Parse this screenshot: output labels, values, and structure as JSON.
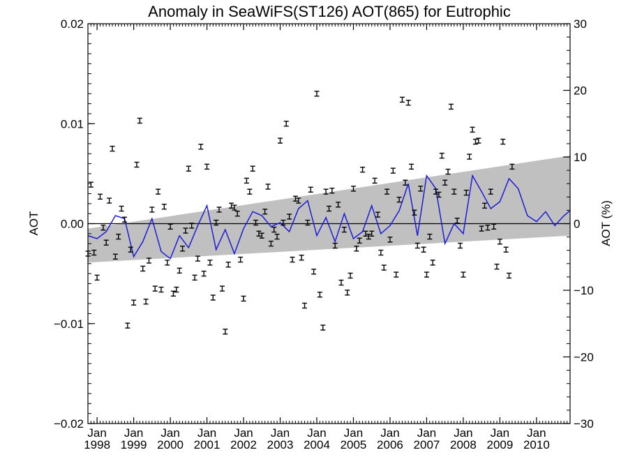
{
  "chart_data": {
    "type": "scatter",
    "title": "Anomaly in SeaWiFS(ST126) AOT(865) for Eutrophic",
    "ylabel": "AOT",
    "ylabel_right": "AOT (%)",
    "xlabel": "",
    "xlim": [
      "1997-10",
      "2010-12"
    ],
    "ylim": [
      -0.02,
      0.02
    ],
    "ylim_right": [
      -30,
      30
    ],
    "grid": false,
    "x_ticks": [
      {
        "month": "Jan",
        "year": "1998",
        "x": "1998-01"
      },
      {
        "month": "Jan",
        "year": "1999",
        "x": "1999-01"
      },
      {
        "month": "Jan",
        "year": "2000",
        "x": "2000-01"
      },
      {
        "month": "Jan",
        "year": "2001",
        "x": "2001-01"
      },
      {
        "month": "Jan",
        "year": "2002",
        "x": "2002-01"
      },
      {
        "month": "Jan",
        "year": "2003",
        "x": "2003-01"
      },
      {
        "month": "Jan",
        "year": "2004",
        "x": "2004-01"
      },
      {
        "month": "Jan",
        "year": "2005",
        "x": "2005-01"
      },
      {
        "month": "Jan",
        "year": "2006",
        "x": "2006-01"
      },
      {
        "month": "Jan",
        "year": "2007",
        "x": "2007-01"
      },
      {
        "month": "Jan",
        "year": "2008",
        "x": "2008-01"
      },
      {
        "month": "Jan",
        "year": "2009",
        "x": "2009-01"
      },
      {
        "month": "Jan",
        "year": "2010",
        "x": "2010-01"
      }
    ],
    "y_ticks_left": [
      {
        "label": "0.02",
        "value": 0.02
      },
      {
        "label": "0.01",
        "value": 0.01
      },
      {
        "label": "0.00",
        "value": 0.0
      },
      {
        "label": "−0.01",
        "value": -0.01
      },
      {
        "label": "−0.02",
        "value": -0.02
      }
    ],
    "y_ticks_right": [
      {
        "label": "30",
        "value": 30
      },
      {
        "label": "20",
        "value": 20
      },
      {
        "label": "10",
        "value": 10
      },
      {
        "label": "0",
        "value": 0
      },
      {
        "label": "−10",
        "value": -10
      },
      {
        "label": "−20",
        "value": -20
      },
      {
        "label": "−30",
        "value": -30
      }
    ],
    "colors": {
      "line": "#1c1cd6",
      "band": "#c0c0c0",
      "points": "#000000",
      "zero_line": "#000000"
    },
    "trend_band": {
      "start": {
        "x": "1997-10",
        "low": -0.0039,
        "high": -0.0005
      },
      "end": {
        "x": "2010-12",
        "low": -0.0012,
        "high": 0.0068
      }
    },
    "points": [
      [
        "1997-10",
        -0.003
      ],
      [
        "1997-11",
        0.0039
      ],
      [
        "1997-12",
        -0.0029
      ],
      [
        "1998-01",
        -0.0054
      ],
      [
        "1998-02",
        0.0027
      ],
      [
        "1998-03",
        -0.0004
      ],
      [
        "1998-04",
        -0.0019
      ],
      [
        "1998-05",
        0.0023
      ],
      [
        "1998-06",
        0.0075
      ],
      [
        "1998-07",
        -0.0033
      ],
      [
        "1998-08",
        -0.0013
      ],
      [
        "1998-09",
        0.0015
      ],
      [
        "1998-10",
        0.0004
      ],
      [
        "1998-11",
        -0.0102
      ],
      [
        "1998-12",
        -0.0026
      ],
      [
        "1999-01",
        -0.0079
      ],
      [
        "1999-02",
        0.0059
      ],
      [
        "1999-03",
        0.0103
      ],
      [
        "1999-04",
        -0.0045
      ],
      [
        "1999-05",
        -0.0078
      ],
      [
        "1999-06",
        -0.0037
      ],
      [
        "1999-07",
        0.0014
      ],
      [
        "1999-08",
        -0.0065
      ],
      [
        "1999-09",
        0.0032
      ],
      [
        "1999-10",
        -0.0066
      ],
      [
        "1999-11",
        0.0017
      ],
      [
        "1999-12",
        -0.0039
      ],
      [
        "2000-01",
        -0.0003
      ],
      [
        "2000-02",
        -0.007
      ],
      [
        "2000-03",
        -0.0066
      ],
      [
        "2000-04",
        -0.0047
      ],
      [
        "2000-05",
        -0.0025
      ],
      [
        "2000-06",
        -0.0007
      ],
      [
        "2000-07",
        0.0055
      ],
      [
        "2000-08",
        -0.0002
      ],
      [
        "2000-09",
        -0.0054
      ],
      [
        "2000-10",
        -0.0035
      ],
      [
        "2000-11",
        0.0077
      ],
      [
        "2000-12",
        -0.005
      ],
      [
        "2001-01",
        0.0057
      ],
      [
        "2001-02",
        -0.0039
      ],
      [
        "2001-03",
        -0.0074
      ],
      [
        "2001-04",
        0.0001
      ],
      [
        "2001-05",
        0.0014
      ],
      [
        "2001-06",
        -0.0065
      ],
      [
        "2001-07",
        -0.0108
      ],
      [
        "2001-08",
        -0.0041
      ],
      [
        "2001-09",
        0.0018
      ],
      [
        "2001-10",
        0.0016
      ],
      [
        "2001-11",
        0.001
      ],
      [
        "2001-12",
        -0.0036
      ],
      [
        "2002-01",
        -0.0075
      ],
      [
        "2002-02",
        0.0043
      ],
      [
        "2002-03",
        0.0032
      ],
      [
        "2002-04",
        0.0055
      ],
      [
        "2002-05",
        0.0001
      ],
      [
        "2002-06",
        -0.001
      ],
      [
        "2002-07",
        -0.0012
      ],
      [
        "2002-08",
        0.0012
      ],
      [
        "2002-09",
        0.0037
      ],
      [
        "2002-10",
        -0.002
      ],
      [
        "2002-11",
        -0.0006
      ],
      [
        "2002-12",
        -0.0013
      ],
      [
        "2003-01",
        0.0083
      ],
      [
        "2003-02",
        0.0001
      ],
      [
        "2003-03",
        0.01
      ],
      [
        "2003-04",
        0.0007
      ],
      [
        "2003-05",
        -0.0036
      ],
      [
        "2003-06",
        0.0025
      ],
      [
        "2003-07",
        0.0023
      ],
      [
        "2003-08",
        -0.0034
      ],
      [
        "2003-09",
        -0.0082
      ],
      [
        "2003-10",
        0.0001
      ],
      [
        "2003-11",
        0.0034
      ],
      [
        "2003-12",
        -0.0048
      ],
      [
        "2004-01",
        0.013
      ],
      [
        "2004-02",
        -0.0071
      ],
      [
        "2004-03",
        -0.0104
      ],
      [
        "2004-04",
        0.0032
      ],
      [
        "2004-05",
        0.0015
      ],
      [
        "2004-06",
        0.0033
      ],
      [
        "2004-07",
        -0.0022
      ],
      [
        "2004-08",
        0.0019
      ],
      [
        "2004-09",
        -0.0059
      ],
      [
        "2004-10",
        -0.0006
      ],
      [
        "2004-11",
        -0.0069
      ],
      [
        "2004-12",
        -0.0052
      ],
      [
        "2005-01",
        0.0035
      ],
      [
        "2005-02",
        -0.0025
      ],
      [
        "2005-03",
        -0.0017
      ],
      [
        "2005-04",
        0.0054
      ],
      [
        "2005-05",
        -0.001
      ],
      [
        "2005-06",
        -0.0013
      ],
      [
        "2005-07",
        -0.001
      ],
      [
        "2005-08",
        0.0043
      ],
      [
        "2005-09",
        0.0009
      ],
      [
        "2005-10",
        -0.0029
      ],
      [
        "2005-11",
        -0.0044
      ],
      [
        "2005-12",
        0.0032
      ],
      [
        "2006-01",
        -0.0016
      ],
      [
        "2006-02",
        0.0053
      ],
      [
        "2006-03",
        -0.0051
      ],
      [
        "2006-04",
        0.0024
      ],
      [
        "2006-05",
        0.0124
      ],
      [
        "2006-06",
        0.0041
      ],
      [
        "2006-07",
        0.0121
      ],
      [
        "2006-08",
        0.0057
      ],
      [
        "2006-09",
        0.0011
      ],
      [
        "2006-10",
        -0.0022
      ],
      [
        "2006-11",
        0.0035
      ],
      [
        "2006-12",
        -0.0026
      ],
      [
        "2007-01",
        -0.0051
      ],
      [
        "2007-02",
        -0.0013
      ],
      [
        "2007-03",
        -0.0039
      ],
      [
        "2007-04",
        0.0032
      ],
      [
        "2007-05",
        0.0029
      ],
      [
        "2007-06",
        0.0068
      ],
      [
        "2007-07",
        0.0041
      ],
      [
        "2007-08",
        0.0052
      ],
      [
        "2007-09",
        0.0117
      ],
      [
        "2007-10",
        0.0032
      ],
      [
        "2007-11",
        0.0003
      ],
      [
        "2007-12",
        -0.0022
      ],
      [
        "2008-01",
        -0.0051
      ],
      [
        "2008-02",
        0.0031
      ],
      [
        "2008-03",
        0.0067
      ],
      [
        "2008-04",
        0.0094
      ],
      [
        "2008-05",
        0.0082
      ],
      [
        "2008-06",
        0.0083
      ],
      [
        "2008-07",
        -0.0005
      ],
      [
        "2008-08",
        0.0018
      ],
      [
        "2008-09",
        -0.0004
      ],
      [
        "2008-10",
        0.0032
      ],
      [
        "2008-11",
        -0.0003
      ],
      [
        "2008-12",
        -0.0043
      ],
      [
        "2009-01",
        -0.0018
      ],
      [
        "2009-02",
        0.0082
      ],
      [
        "2009-03",
        -0.0026
      ],
      [
        "2009-04",
        -0.0052
      ],
      [
        "2009-05",
        0.0057
      ]
    ],
    "series": [
      {
        "x": [
          "1997-10",
          "1998-01",
          "1998-04",
          "1998-07",
          "1998-10",
          "1999-01",
          "1999-04",
          "1999-07",
          "1999-10",
          "2000-01",
          "2000-04",
          "2000-07",
          "2000-10",
          "2001-01",
          "2001-04",
          "2001-07",
          "2001-10",
          "2002-01",
          "2002-04",
          "2002-07",
          "2002-10",
          "2003-01",
          "2003-04",
          "2003-07",
          "2003-10",
          "2004-01",
          "2004-04",
          "2004-07",
          "2004-10",
          "2005-01",
          "2005-04",
          "2005-07",
          "2005-10",
          "2006-01",
          "2006-04",
          "2006-07",
          "2006-10",
          "2007-01",
          "2007-04",
          "2007-07",
          "2007-10",
          "2008-01",
          "2008-04",
          "2008-07",
          "2008-10",
          "2009-01",
          "2009-04",
          "2009-07",
          "2009-10",
          "2010-01",
          "2010-04",
          "2010-07",
          "2010-10",
          "2010-12"
        ],
        "y": [
          -0.0012,
          -0.0015,
          -0.0008,
          0.0008,
          0.0005,
          -0.0033,
          -0.0018,
          0.0005,
          -0.0028,
          -0.0035,
          -0.0012,
          -0.0024,
          -0.0002,
          0.0018,
          -0.0026,
          -0.0006,
          -0.003,
          -0.0005,
          0.0012,
          0.0008,
          -0.0003,
          0.0001,
          -0.0008,
          0.0015,
          0.0023,
          -0.0012,
          0.0006,
          -0.0018,
          0.001,
          -0.0015,
          -0.0008,
          0.0018,
          -0.001,
          -0.0002,
          0.0013,
          0.004,
          -0.0012,
          0.0048,
          0.0035,
          -0.002,
          0.0,
          -0.001,
          0.0048,
          0.0032,
          0.0015,
          0.0022,
          0.0045,
          0.0035,
          0.0008,
          0.0002,
          0.0012,
          -0.0002,
          0.0008,
          0.0013
        ]
      }
    ]
  }
}
